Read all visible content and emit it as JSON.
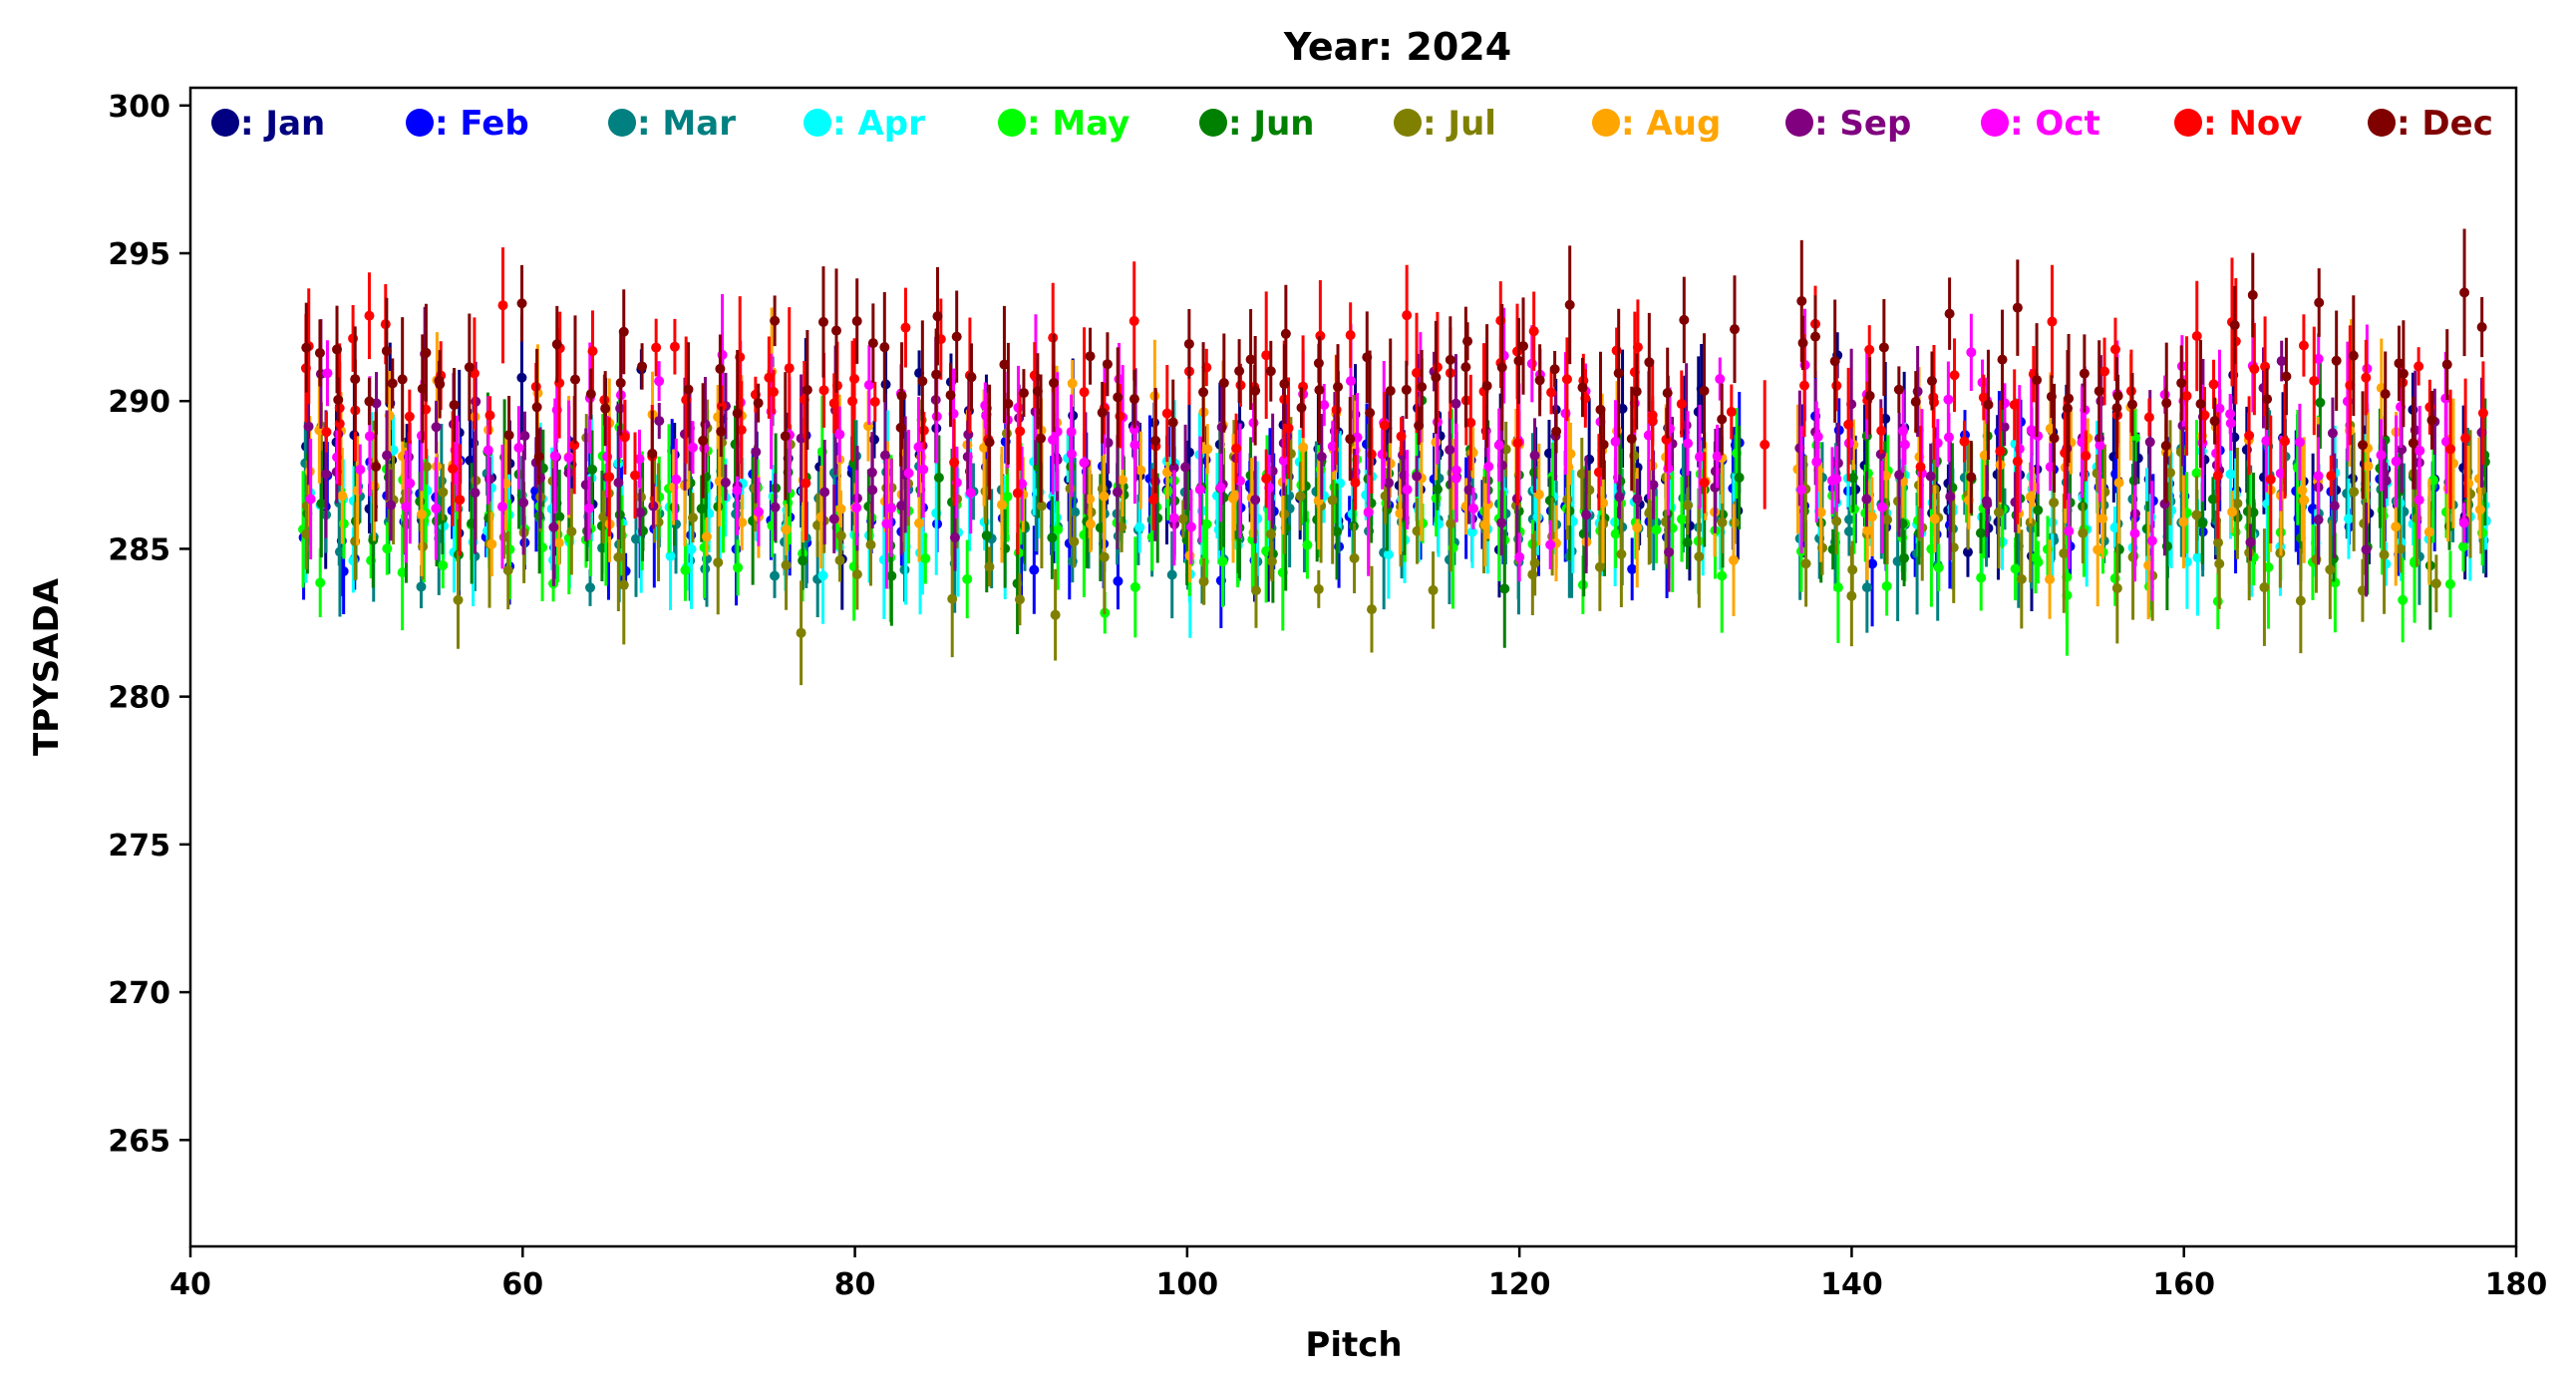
{
  "chart_data": {
    "type": "scatter",
    "title": "Year: 2024",
    "xlabel": "Pitch",
    "ylabel": "TPYSADA",
    "xlim": [
      40,
      180
    ],
    "ylim": [
      261.4,
      300.6
    ],
    "xticks": [
      "40",
      "60",
      "80",
      "100",
      "120",
      "140",
      "160",
      "180"
    ],
    "yticks": [
      "265",
      "270",
      "275",
      "280",
      "285",
      "290",
      "295",
      "300"
    ],
    "grid": false,
    "legend_position": "top",
    "pitch_range": [
      47,
      178
    ],
    "error_bars": true,
    "series": [
      {
        "name": ": Jan",
        "color": "#000080",
        "center": 287.9,
        "spread": 2.4
      },
      {
        "name": ": Feb",
        "color": "#0000ff",
        "center": 286.6,
        "spread": 2.2
      },
      {
        "name": ": Mar",
        "color": "#008080",
        "center": 286.1,
        "spread": 1.8
      },
      {
        "name": ": Apr",
        "color": "#00ffff",
        "center": 286.3,
        "spread": 1.8
      },
      {
        "name": ": May",
        "color": "#00ff00",
        "center": 285.9,
        "spread": 2.0
      },
      {
        "name": ": Jun",
        "color": "#008000",
        "center": 286.6,
        "spread": 1.9
      },
      {
        "name": ": Jul",
        "color": "#808000",
        "center": 286.0,
        "spread": 2.4
      },
      {
        "name": ": Aug",
        "color": "#ffa500",
        "center": 287.6,
        "spread": 2.5
      },
      {
        "name": ": Sep",
        "color": "#800080",
        "center": 288.0,
        "spread": 2.4
      },
      {
        "name": ": Oct",
        "color": "#ff00ff",
        "center": 288.6,
        "spread": 2.5
      },
      {
        "name": ": Nov",
        "color": "#ff0000",
        "center": 290.0,
        "spread": 2.5
      },
      {
        "name": ": Dec",
        "color": "#800000",
        "center": 290.9,
        "spread": 2.4
      }
    ]
  }
}
